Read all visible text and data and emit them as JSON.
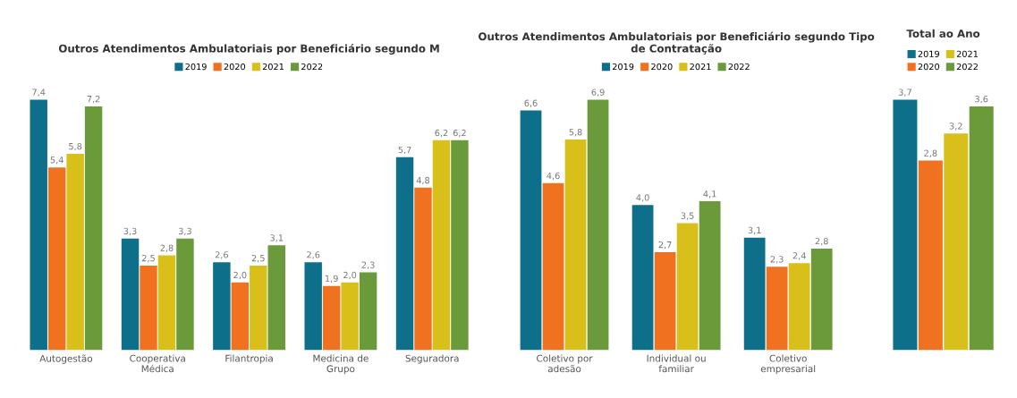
{
  "chart_data": [
    {
      "type": "bar",
      "title": "Outros Atendimentos Ambulatoriais por Beneficiário segundo M",
      "categories": [
        "Autogestão",
        "Cooperativa\nMédica",
        "Filantropia",
        "Medicina de\nGrupo",
        "Seguradora"
      ],
      "legend": "top",
      "data_labels": true,
      "tick_labels": "x",
      "series": [
        {
          "name": "2019",
          "color": "#0e6f8a",
          "values": [
            7.4,
            3.3,
            2.6,
            2.6,
            5.7
          ],
          "value_labels": [
            "7,4",
            "3,3",
            "2,6",
            "2,6",
            "5,7"
          ]
        },
        {
          "name": "2020",
          "color": "#f0711f",
          "values": [
            5.4,
            2.5,
            2.0,
            1.9,
            4.8
          ],
          "value_labels": [
            "5,4",
            "2,5",
            "2,0",
            "1,9",
            "4,8"
          ]
        },
        {
          "name": "2021",
          "color": "#d8bf1a",
          "values": [
            5.8,
            2.8,
            2.5,
            2.0,
            6.2
          ],
          "value_labels": [
            "5,8",
            "2,8",
            "2,5",
            "2,0",
            "6,2"
          ]
        },
        {
          "name": "2022",
          "color": "#6a9a3a",
          "values": [
            7.2,
            3.3,
            3.1,
            2.3,
            6.2
          ],
          "value_labels": [
            "7,2",
            "3,3",
            "3,1",
            "2,3",
            "6,2"
          ]
        }
      ]
    },
    {
      "type": "bar",
      "title": "Outros Atendimentos Ambulatoriais por Beneficiário segundo Tipo\nde Contratação",
      "categories": [
        "Coletivo por\nadesão",
        "Individual ou\nfamiliar",
        "Coletivo\nempresarial"
      ],
      "legend": "top",
      "data_labels": true,
      "tick_labels": "x",
      "series": [
        {
          "name": "2019",
          "color": "#0e6f8a",
          "values": [
            6.6,
            4.0,
            3.1
          ],
          "value_labels": [
            "6,6",
            "4,0",
            "3,1"
          ]
        },
        {
          "name": "2020",
          "color": "#f0711f",
          "values": [
            4.6,
            2.7,
            2.3
          ],
          "value_labels": [
            "4,6",
            "2,7",
            "2,3"
          ]
        },
        {
          "name": "2021",
          "color": "#d8bf1a",
          "values": [
            5.8,
            3.5,
            2.4
          ],
          "value_labels": [
            "5,8",
            "3,5",
            "2,4"
          ]
        },
        {
          "name": "2022",
          "color": "#6a9a3a",
          "values": [
            6.9,
            4.1,
            2.8
          ],
          "value_labels": [
            "6,9",
            "4,1",
            "2,8"
          ]
        }
      ]
    },
    {
      "type": "bar",
      "title": "Total ao Ano",
      "categories": [
        null
      ],
      "legend": "top",
      "data_labels": true,
      "tick_labels": "x",
      "series": [
        {
          "name": "2019",
          "color": "#0e6f8a",
          "values": [
            3.7
          ],
          "value_labels": [
            "3,7"
          ]
        },
        {
          "name": "2020",
          "color": "#f0711f",
          "values": [
            2.8
          ],
          "value_labels": [
            "2,8"
          ]
        },
        {
          "name": "2021",
          "color": "#d8bf1a",
          "values": [
            3.2
          ],
          "value_labels": [
            "3,2"
          ]
        },
        {
          "name": "2022",
          "color": "#6a9a3a",
          "values": [
            3.6
          ],
          "value_labels": [
            "3,6"
          ]
        }
      ]
    }
  ]
}
